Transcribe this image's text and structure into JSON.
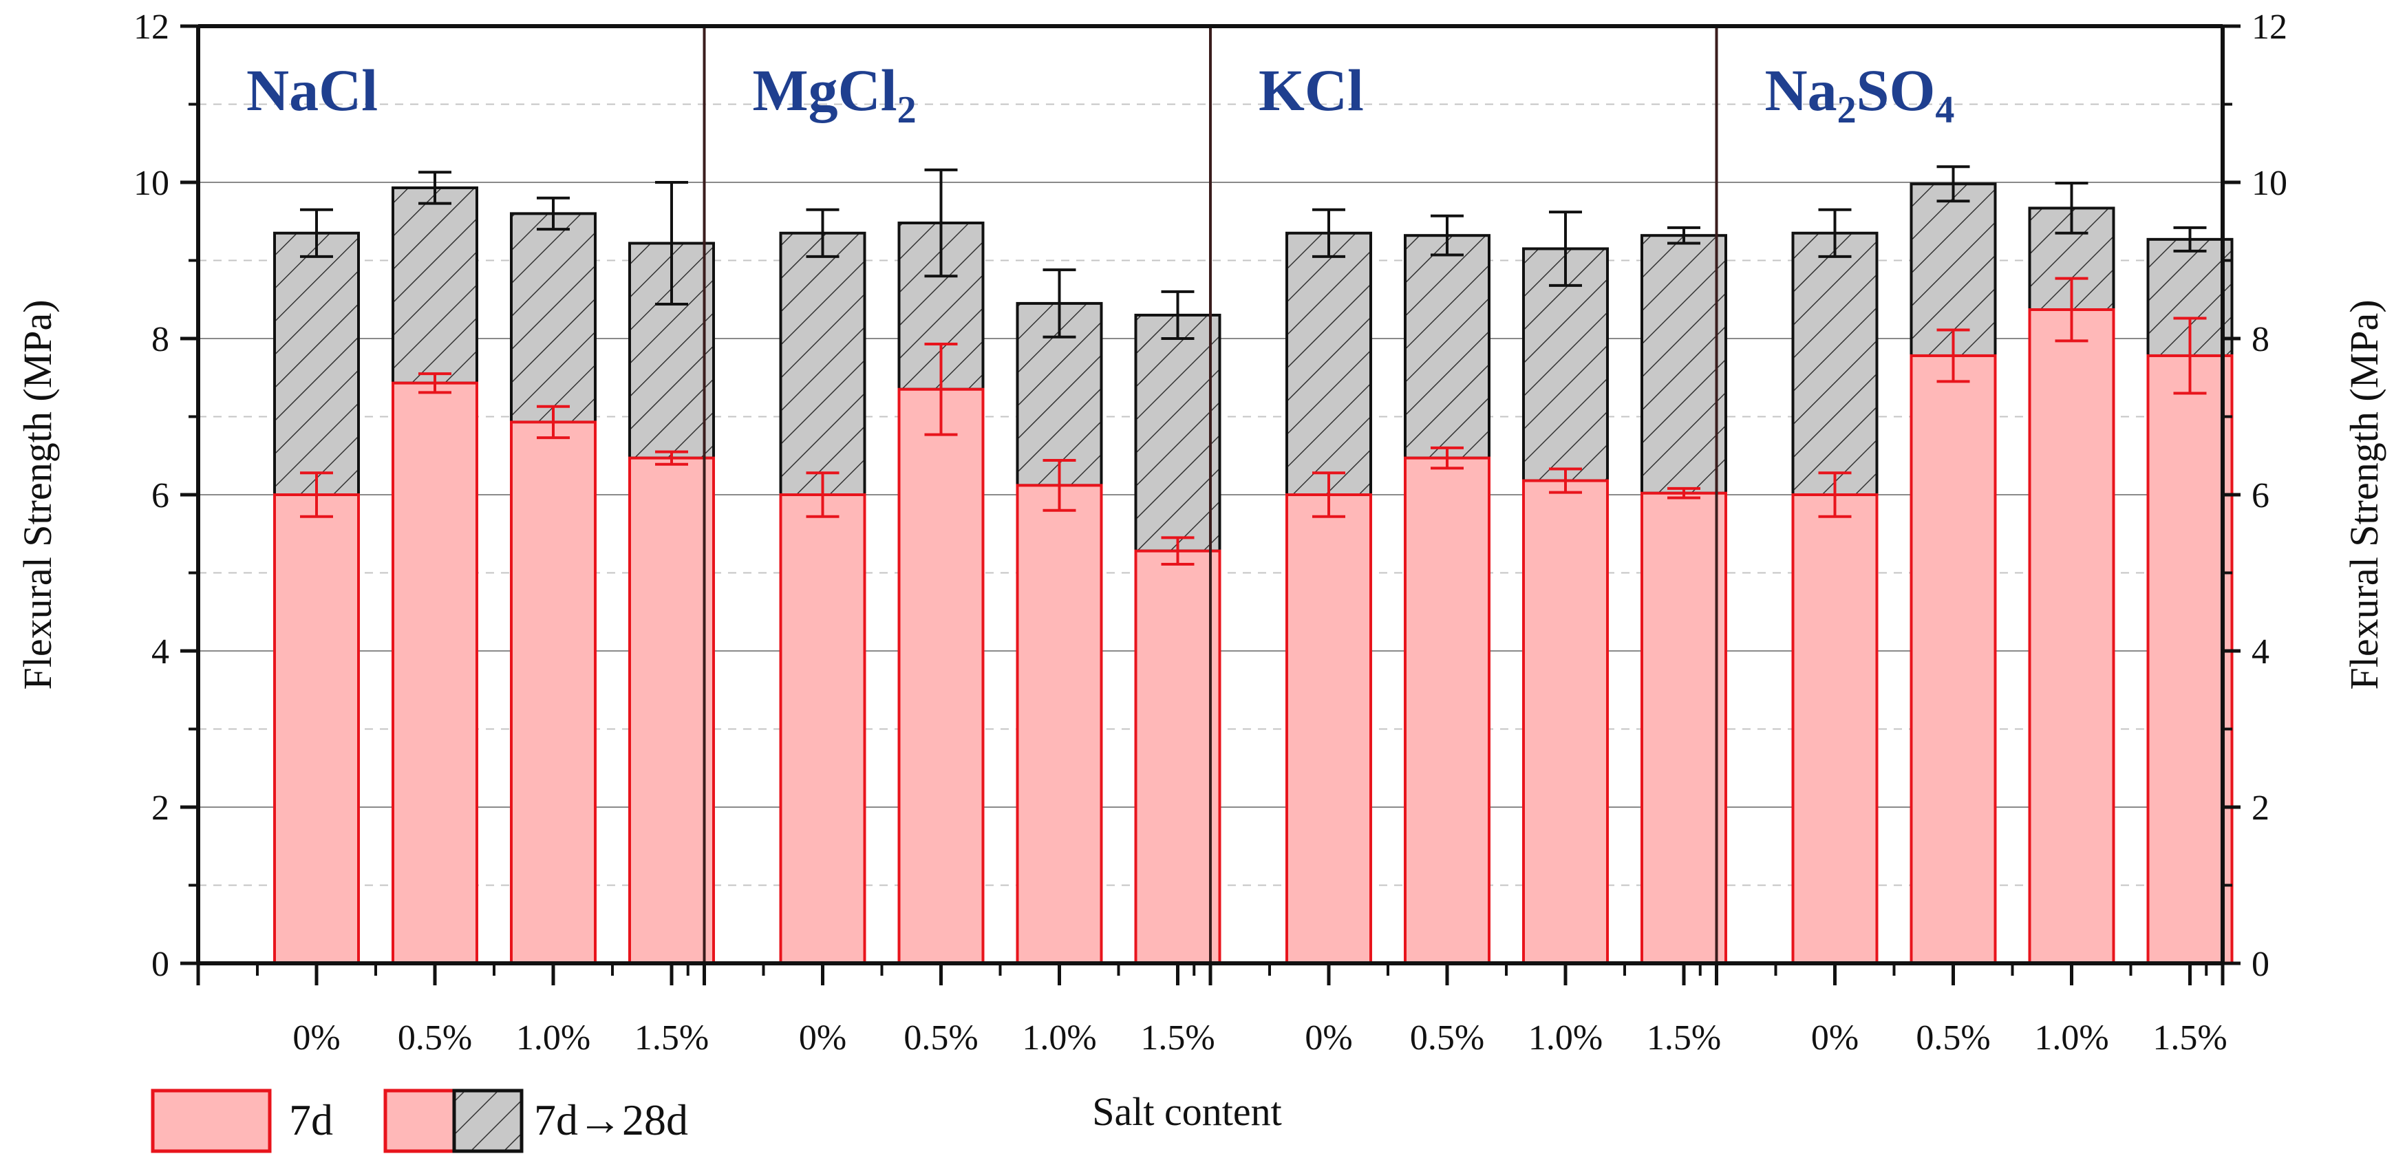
{
  "chart_data": {
    "type": "bar",
    "subtype": "stacked-grouped",
    "title": "",
    "xlabel": "Salt content",
    "ylabel": "Flexural Strength (MPa)",
    "ylabel_right": "Flexural Strength (MPa)",
    "ylim": [
      0,
      12
    ],
    "yticks": [
      0,
      2,
      4,
      6,
      8,
      10,
      12
    ],
    "grid": true,
    "colors": {
      "seven_day_fill": "#ffb8b8",
      "seven_day_edge": "#e8141c",
      "gain_fill": "#c8c8c8",
      "gain_edge": "#111111",
      "group_label": "#1f3f8f"
    },
    "legend": {
      "position": "bottom-left",
      "items": [
        {
          "key": "seven_day",
          "label": "7d"
        },
        {
          "key": "gain",
          "label": "7d→28d"
        }
      ]
    },
    "groups": [
      {
        "name": "NaCl",
        "label_main": "NaCl",
        "label_sub": "",
        "label_tail": "",
        "categories": [
          "0%",
          "0.5%",
          "1.0%",
          "1.5%"
        ],
        "seven_day": [
          6.0,
          7.43,
          6.93,
          6.47
        ],
        "seven_day_err": [
          0.28,
          0.12,
          0.2,
          0.08
        ],
        "twenty_eight_day": [
          9.35,
          9.93,
          9.6,
          9.22
        ],
        "twenty_eight_day_err": [
          0.3,
          0.2,
          0.2,
          0.78
        ]
      },
      {
        "name": "MgCl2",
        "label_main": "MgCl",
        "label_sub": "2",
        "label_tail": "",
        "categories": [
          "0%",
          "0.5%",
          "1.0%",
          "1.5%"
        ],
        "seven_day": [
          6.0,
          7.35,
          6.12,
          5.28
        ],
        "seven_day_err": [
          0.28,
          0.58,
          0.32,
          0.17
        ],
        "twenty_eight_day": [
          9.35,
          9.48,
          8.45,
          8.3
        ],
        "twenty_eight_day_err": [
          0.3,
          0.68,
          0.43,
          0.3
        ]
      },
      {
        "name": "KCl",
        "label_main": "KCl",
        "label_sub": "",
        "label_tail": "",
        "categories": [
          "0%",
          "0.5%",
          "1.0%",
          "1.5%"
        ],
        "seven_day": [
          6.0,
          6.47,
          6.18,
          6.02
        ],
        "seven_day_err": [
          0.28,
          0.13,
          0.15,
          0.06
        ],
        "twenty_eight_day": [
          9.35,
          9.32,
          9.15,
          9.32
        ],
        "twenty_eight_day_err": [
          0.3,
          0.25,
          0.47,
          0.1
        ]
      },
      {
        "name": "Na2SO4",
        "label_main": "Na",
        "label_sub": "2",
        "label_tail": "SO",
        "label_sub2": "4",
        "categories": [
          "0%",
          "0.5%",
          "1.0%",
          "1.5%"
        ],
        "seven_day": [
          6.0,
          7.78,
          8.37,
          7.78
        ],
        "seven_day_err": [
          0.28,
          0.33,
          0.4,
          0.48
        ],
        "twenty_eight_day": [
          9.35,
          9.98,
          9.67,
          9.27
        ],
        "twenty_eight_day_err": [
          0.3,
          0.22,
          0.32,
          0.15
        ]
      }
    ]
  }
}
